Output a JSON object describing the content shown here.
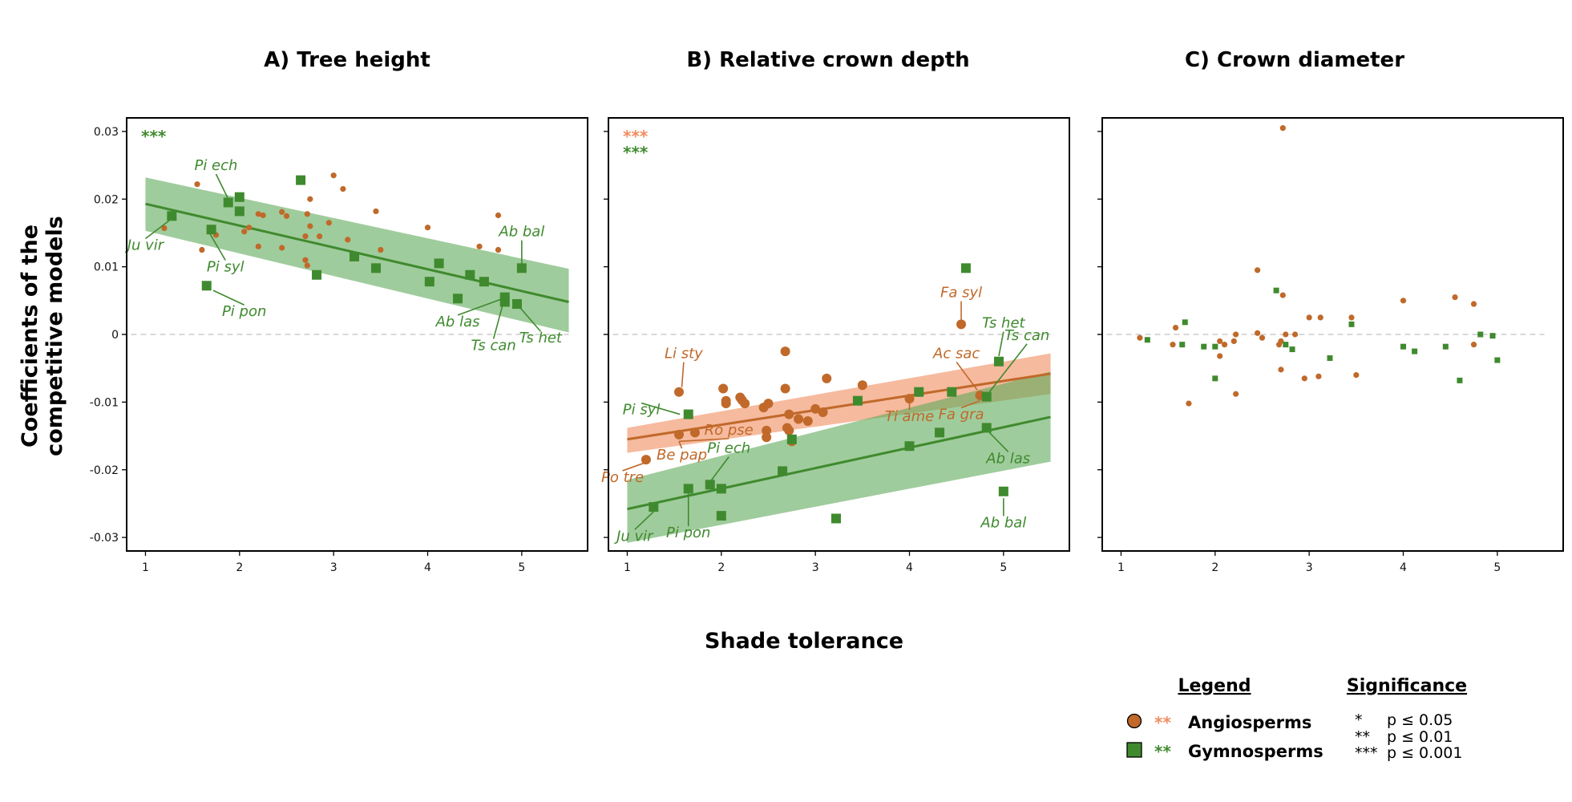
{
  "figure": {
    "y_axis_title_line1": "Coefficients of the",
    "y_axis_title_line2": "competitive models",
    "x_axis_title": "Shade tolerance"
  },
  "colors": {
    "angio": "#c0692a",
    "angio_band": "#f08c5e",
    "gymno": "#3f8a2e",
    "gymno_band": "#5faa5a",
    "zero_line": "#cccccc"
  },
  "legend": {
    "title": "Legend",
    "angio_label": "Angiosperms",
    "angio_stars": "**",
    "gymno_label": "Gymnosperms",
    "gymno_stars": "**"
  },
  "significance": {
    "title": "Significance",
    "rows": [
      {
        "stars": "*",
        "text": "p ≤ 0.05"
      },
      {
        "stars": "**",
        "text": "p ≤ 0.01"
      },
      {
        "stars": "***",
        "text": "p ≤ 0.001"
      }
    ]
  },
  "chart_data": [
    {
      "type": "scatter",
      "title": "A) Tree height",
      "xlabel": "Shade tolerance",
      "ylabel": "Coefficients of the competitive models",
      "xlim": [
        0.8,
        5.7
      ],
      "ylim": [
        -0.032,
        0.032
      ],
      "x_ticks": [
        "1",
        "2",
        "3",
        "4",
        "5"
      ],
      "y_ticks": [
        "0.03",
        "0.02",
        "0.01",
        "0",
        "-0.01",
        "-0.02",
        "-0.03"
      ],
      "significance": [
        {
          "group": "gymno",
          "stars": "***"
        }
      ],
      "series": [
        {
          "name": "Angiosperms",
          "group": "angio",
          "marker": "circle",
          "size": "small",
          "points": [
            [
              1.2,
              0.0157
            ],
            [
              1.55,
              0.0222
            ],
            [
              1.6,
              0.0125
            ],
            [
              1.75,
              0.0147
            ],
            [
              2.05,
              0.0152
            ],
            [
              2.1,
              0.0158
            ],
            [
              2.2,
              0.013
            ],
            [
              2.2,
              0.0178
            ],
            [
              2.25,
              0.0176
            ],
            [
              2.45,
              0.0181
            ],
            [
              2.5,
              0.0175
            ],
            [
              2.45,
              0.0128
            ],
            [
              2.75,
              0.02
            ],
            [
              2.72,
              0.0178
            ],
            [
              2.75,
              0.016
            ],
            [
              2.7,
              0.0145
            ],
            [
              2.85,
              0.0145
            ],
            [
              2.95,
              0.0165
            ],
            [
              3.15,
              0.014
            ],
            [
              3.0,
              0.0235
            ],
            [
              3.1,
              0.0215
            ],
            [
              3.45,
              0.0182
            ],
            [
              3.5,
              0.0125
            ],
            [
              2.7,
              0.011
            ],
            [
              2.72,
              0.0102
            ],
            [
              4.0,
              0.0158
            ],
            [
              4.55,
              0.013
            ],
            [
              4.75,
              0.0176
            ],
            [
              4.75,
              0.0125
            ]
          ]
        },
        {
          "name": "Gymnosperms",
          "group": "gymno",
          "marker": "square",
          "size": "large",
          "points": [
            [
              1.28,
              0.0175
            ],
            [
              1.88,
              0.0195
            ],
            [
              2.0,
              0.0203
            ],
            [
              2.0,
              0.0182
            ],
            [
              1.7,
              0.0155
            ],
            [
              1.65,
              0.0072
            ],
            [
              2.65,
              0.0228
            ],
            [
              2.82,
              0.0088
            ],
            [
              3.22,
              0.0115
            ],
            [
              3.45,
              0.0098
            ],
            [
              4.02,
              0.0078
            ],
            [
              4.12,
              0.0105
            ],
            [
              4.32,
              0.0053
            ],
            [
              4.45,
              0.0088
            ],
            [
              4.6,
              0.0078
            ],
            [
              4.82,
              0.0048
            ],
            [
              4.82,
              0.0055
            ],
            [
              4.95,
              0.0045
            ],
            [
              5.0,
              0.0098
            ]
          ]
        }
      ],
      "fits": [
        {
          "group": "gymno",
          "x": [
            1,
            5.5
          ],
          "y": [
            0.0193,
            0.0048
          ],
          "lower": [
            0.0153,
            0.0003
          ],
          "upper": [
            0.0232,
            0.0097
          ]
        }
      ],
      "annotations": [
        {
          "text": "Ju vir",
          "group": "gymno"
        },
        {
          "text": "Pi ech",
          "group": "gymno"
        },
        {
          "text": "Pi syl",
          "group": "gymno"
        },
        {
          "text": "Pi pon",
          "group": "gymno"
        },
        {
          "text": "Ab bal",
          "group": "gymno"
        },
        {
          "text": "Ab las",
          "group": "gymno"
        },
        {
          "text": "Ts can",
          "group": "gymno"
        },
        {
          "text": "Ts het",
          "group": "gymno"
        }
      ]
    },
    {
      "type": "scatter",
      "title": "B) Relative crown depth",
      "xlabel": "Shade tolerance",
      "ylabel": "Coefficients of the competitive models",
      "xlim": [
        0.8,
        5.7
      ],
      "ylim": [
        -0.032,
        0.032
      ],
      "x_ticks": [
        "1",
        "2",
        "3",
        "4",
        "5"
      ],
      "significance": [
        {
          "group": "angio",
          "stars": "***"
        },
        {
          "group": "gymno",
          "stars": "***"
        }
      ],
      "series": [
        {
          "name": "Angiosperms",
          "group": "angio",
          "marker": "circle",
          "size": "large",
          "points": [
            [
              1.2,
              -0.0185
            ],
            [
              1.55,
              -0.0085
            ],
            [
              1.55,
              -0.0148
            ],
            [
              1.72,
              -0.0145
            ],
            [
              2.02,
              -0.008
            ],
            [
              2.05,
              -0.0098
            ],
            [
              2.05,
              -0.0102
            ],
            [
              2.2,
              -0.0093
            ],
            [
              2.22,
              -0.0097
            ],
            [
              2.25,
              -0.0102
            ],
            [
              2.45,
              -0.0108
            ],
            [
              2.5,
              -0.0102
            ],
            [
              2.48,
              -0.0142
            ],
            [
              2.48,
              -0.0152
            ],
            [
              2.68,
              -0.0025
            ],
            [
              2.68,
              -0.008
            ],
            [
              2.72,
              -0.0118
            ],
            [
              2.7,
              -0.0138
            ],
            [
              2.72,
              -0.0142
            ],
            [
              2.75,
              -0.0158
            ],
            [
              2.82,
              -0.0125
            ],
            [
              2.92,
              -0.0128
            ],
            [
              3.0,
              -0.011
            ],
            [
              3.08,
              -0.0115
            ],
            [
              3.12,
              -0.0065
            ],
            [
              3.5,
              -0.0075
            ],
            [
              4.0,
              -0.0095
            ],
            [
              4.55,
              0.0015
            ],
            [
              4.75,
              -0.009
            ]
          ]
        },
        {
          "name": "Gymnosperms",
          "group": "gymno",
          "marker": "square",
          "size": "large",
          "points": [
            [
              1.28,
              -0.0255
            ],
            [
              1.65,
              -0.0118
            ],
            [
              1.65,
              -0.0228
            ],
            [
              1.88,
              -0.0222
            ],
            [
              2.0,
              -0.0228
            ],
            [
              2.0,
              -0.0268
            ],
            [
              2.65,
              -0.0202
            ],
            [
              2.75,
              -0.0155
            ],
            [
              3.22,
              -0.0272
            ],
            [
              3.45,
              -0.0098
            ],
            [
              4.0,
              -0.0165
            ],
            [
              4.1,
              -0.0085
            ],
            [
              4.32,
              -0.0145
            ],
            [
              4.45,
              -0.0085
            ],
            [
              4.6,
              0.0098
            ],
            [
              4.82,
              -0.0092
            ],
            [
              4.82,
              -0.0138
            ],
            [
              4.95,
              -0.004
            ],
            [
              5.0,
              -0.0232
            ]
          ]
        }
      ],
      "fits": [
        {
          "group": "angio",
          "x": [
            1,
            5.5
          ],
          "y": [
            -0.0155,
            -0.0058
          ],
          "lower": [
            -0.0175,
            -0.0088
          ],
          "upper": [
            -0.0138,
            -0.0028
          ]
        },
        {
          "group": "gymno",
          "x": [
            1,
            5.5
          ],
          "y": [
            -0.0258,
            -0.0122
          ],
          "lower": [
            -0.0308,
            -0.0188
          ],
          "upper": [
            -0.0215,
            -0.0055
          ]
        }
      ],
      "annotations": [
        {
          "text": "Li sty",
          "group": "angio"
        },
        {
          "text": "Pi syl",
          "group": "gymno"
        },
        {
          "text": "Ro pse",
          "group": "angio"
        },
        {
          "text": "Be pap",
          "group": "angio"
        },
        {
          "text": "Pi ech",
          "group": "gymno"
        },
        {
          "text": "Po tre",
          "group": "angio"
        },
        {
          "text": "Ju vir",
          "group": "gymno"
        },
        {
          "text": "Pi pon",
          "group": "gymno"
        },
        {
          "text": "Fa syl",
          "group": "angio"
        },
        {
          "text": "Ts het",
          "group": "gymno"
        },
        {
          "text": "Ts can",
          "group": "gymno"
        },
        {
          "text": "Ac sac",
          "group": "angio"
        },
        {
          "text": "Ti ame",
          "group": "angio"
        },
        {
          "text": "Fa gra",
          "group": "angio"
        },
        {
          "text": "Ab las",
          "group": "gymno"
        },
        {
          "text": "Ab bal",
          "group": "gymno"
        }
      ]
    },
    {
      "type": "scatter",
      "title": "C) Crown diameter",
      "xlabel": "Shade tolerance",
      "ylabel": "Coefficients of the competitive models",
      "xlim": [
        0.8,
        5.7
      ],
      "ylim": [
        -0.032,
        0.032
      ],
      "x_ticks": [
        "1",
        "2",
        "3",
        "4",
        "5"
      ],
      "significance": [],
      "series": [
        {
          "name": "Angiosperms",
          "group": "angio",
          "marker": "circle",
          "size": "small",
          "points": [
            [
              1.2,
              -0.0005
            ],
            [
              1.55,
              -0.0015
            ],
            [
              1.58,
              0.001
            ],
            [
              1.72,
              -0.0102
            ],
            [
              2.05,
              -0.001
            ],
            [
              2.05,
              -0.0032
            ],
            [
              2.1,
              -0.0015
            ],
            [
              2.2,
              -0.001
            ],
            [
              2.22,
              0.0
            ],
            [
              2.22,
              -0.0088
            ],
            [
              2.45,
              0.0095
            ],
            [
              2.45,
              0.0002
            ],
            [
              2.5,
              -0.0005
            ],
            [
              2.68,
              -0.0015
            ],
            [
              2.7,
              -0.0052
            ],
            [
              2.7,
              -0.001
            ],
            [
              2.72,
              0.0058
            ],
            [
              2.75,
              0.0
            ],
            [
              2.85,
              0.0
            ],
            [
              2.72,
              0.0305
            ],
            [
              2.95,
              -0.0065
            ],
            [
              3.0,
              0.0025
            ],
            [
              3.12,
              0.0025
            ],
            [
              3.1,
              -0.0062
            ],
            [
              3.45,
              0.0025
            ],
            [
              3.5,
              -0.006
            ],
            [
              4.0,
              0.005
            ],
            [
              4.55,
              0.0055
            ],
            [
              4.75,
              0.0045
            ],
            [
              4.75,
              -0.0015
            ]
          ]
        },
        {
          "name": "Gymnosperms",
          "group": "gymno",
          "marker": "square",
          "size": "small",
          "points": [
            [
              1.28,
              -0.0008
            ],
            [
              1.65,
              -0.0015
            ],
            [
              1.68,
              0.0018
            ],
            [
              1.88,
              -0.0018
            ],
            [
              2.0,
              -0.0018
            ],
            [
              2.0,
              -0.0065
            ],
            [
              2.65,
              0.0065
            ],
            [
              2.75,
              -0.0015
            ],
            [
              2.82,
              -0.0022
            ],
            [
              3.22,
              -0.0035
            ],
            [
              3.45,
              0.0015
            ],
            [
              4.0,
              -0.0018
            ],
            [
              4.12,
              -0.0025
            ],
            [
              4.45,
              -0.0018
            ],
            [
              4.6,
              -0.0068
            ],
            [
              4.82,
              0.0
            ],
            [
              4.95,
              -0.0002
            ],
            [
              5.0,
              -0.0038
            ]
          ]
        }
      ],
      "fits": [],
      "annotations": []
    }
  ]
}
